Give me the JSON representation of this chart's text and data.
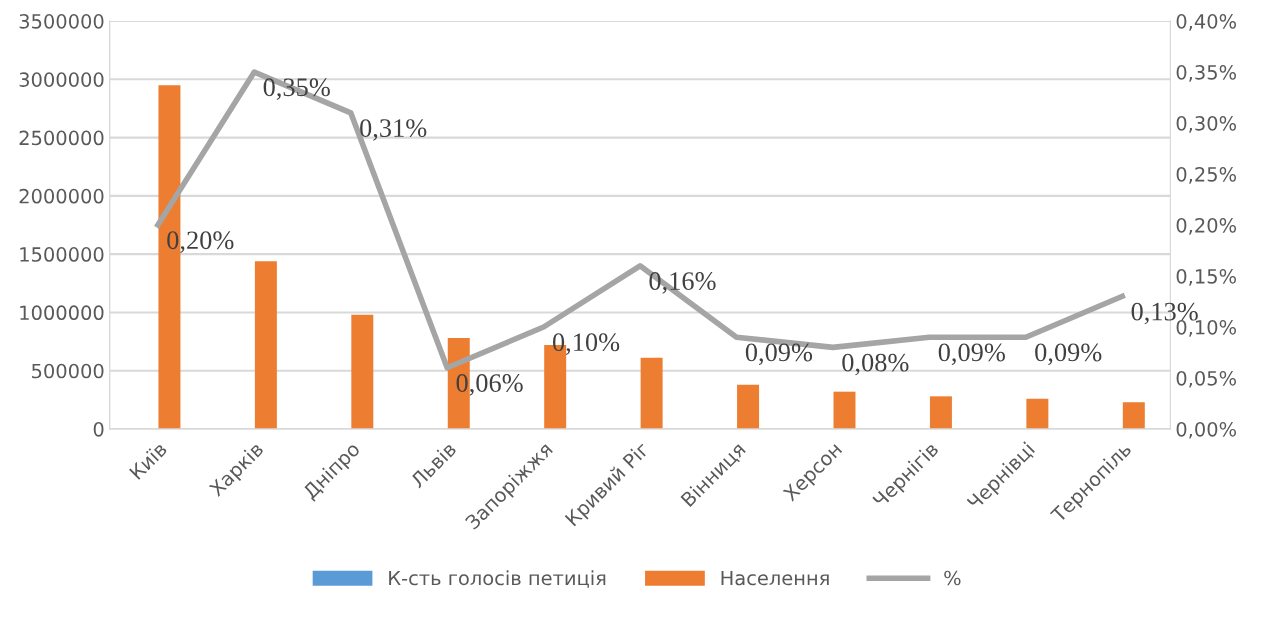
{
  "chart_data": {
    "type": "bar",
    "categories": [
      "Київ",
      "Харків",
      "Дніпро",
      "Львів",
      "Запоріжжя",
      "Кривий Ріг",
      "Вінниця",
      "Херсон",
      "Чернігів",
      "Чернівці",
      "Тернопіль"
    ],
    "series": [
      {
        "name": "К-сть голосів петиція",
        "color": "#5b9bd5",
        "values": [
          0,
          0,
          0,
          0,
          0,
          0,
          0,
          0,
          0,
          0,
          0
        ]
      },
      {
        "name": "Населення",
        "color": "#ed7d31",
        "values": [
          2950000,
          1440000,
          980000,
          780000,
          720000,
          610000,
          380000,
          320000,
          280000,
          260000,
          230000
        ]
      },
      {
        "name": "%",
        "type": "line",
        "axis": "y2",
        "color": "#a5a5a5",
        "values": [
          0.2,
          0.35,
          0.31,
          0.06,
          0.1,
          0.16,
          0.09,
          0.08,
          0.09,
          0.09,
          0.13
        ],
        "value_labels": [
          "0,20%",
          "0,35%",
          "0,31%",
          "0,06%",
          "0,10%",
          "0,16%",
          "0,09%",
          "0,08%",
          "0,09%",
          "0,09%",
          "0,13%"
        ]
      }
    ],
    "ylim": [
      0,
      3500000
    ],
    "yticks": [
      0,
      500000,
      1000000,
      1500000,
      2000000,
      2500000,
      3000000,
      3500000
    ],
    "y2lim": [
      0,
      0.4
    ],
    "y2ticks": [
      {
        "value": 0,
        "label": "0,00%"
      },
      {
        "value": 0.05,
        "label": "0,05%"
      },
      {
        "value": 0.1,
        "label": "0,10%"
      },
      {
        "value": 0.15,
        "label": "0,15%"
      },
      {
        "value": 0.2,
        "label": "0,20%"
      },
      {
        "value": 0.25,
        "label": "0,25%"
      },
      {
        "value": 0.3,
        "label": "0,30%"
      },
      {
        "value": 0.35,
        "label": "0,35%"
      },
      {
        "value": 0.4,
        "label": "0,40%"
      }
    ],
    "grid": "y",
    "legend": "bottom",
    "marker": "none",
    "line_style": "solid"
  }
}
